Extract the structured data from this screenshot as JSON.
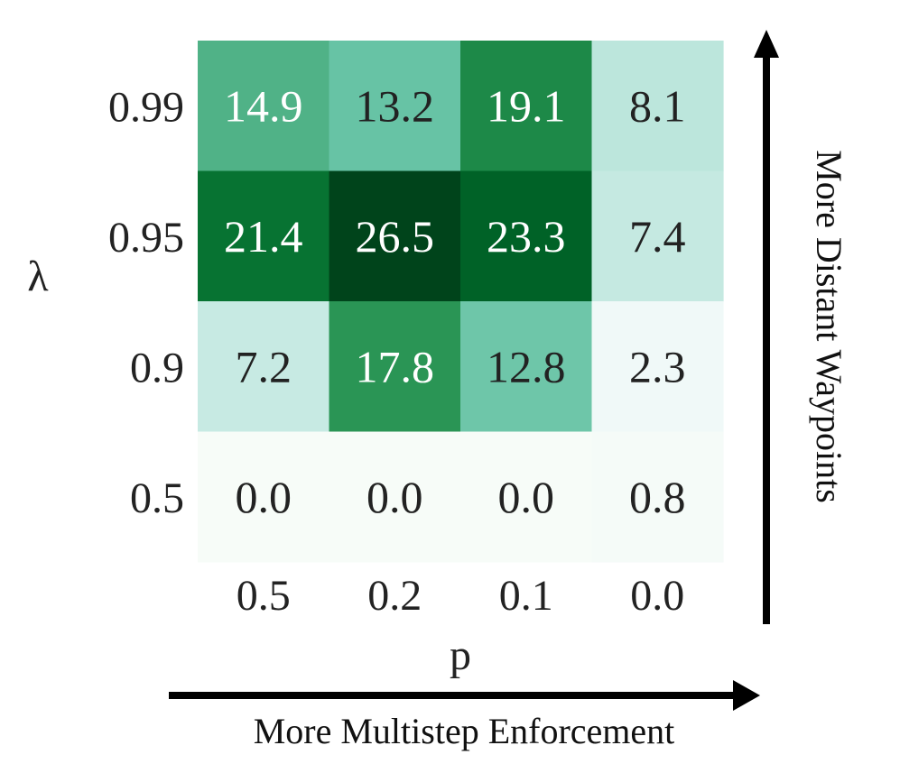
{
  "chart_data": {
    "type": "heatmap",
    "title": "",
    "xlabel": "p",
    "ylabel": "λ",
    "x_categories": [
      "0.5",
      "0.2",
      "0.1",
      "0.0"
    ],
    "y_categories": [
      "0.99",
      "0.95",
      "0.9",
      "0.5"
    ],
    "values": [
      [
        14.9,
        13.2,
        19.1,
        8.1
      ],
      [
        21.4,
        26.5,
        23.3,
        7.4
      ],
      [
        7.2,
        17.8,
        12.8,
        2.3
      ],
      [
        0.0,
        0.0,
        0.0,
        0.8
      ]
    ],
    "value_labels": [
      [
        "14.9",
        "13.2",
        "19.1",
        "8.1"
      ],
      [
        "21.4",
        "26.5",
        "23.3",
        "7.4"
      ],
      [
        "7.2",
        "17.8",
        "12.8",
        "2.3"
      ],
      [
        "0.0",
        "0.0",
        "0.0",
        "0.8"
      ]
    ],
    "vmin": 0.0,
    "vmax": 26.5,
    "colormap": "Greens",
    "color_stops": [
      "#f7fcf8",
      "#eaf7f8",
      "#b3e3d6",
      "#66c3a4",
      "#2b9656",
      "#006d2c",
      "#00441b"
    ],
    "light_text_color": "#ffffff",
    "dark_text_color": "#222222",
    "x_arrow_label": "More Multistep Enforcement",
    "y_arrow_label": "More Distant Waypoints"
  }
}
